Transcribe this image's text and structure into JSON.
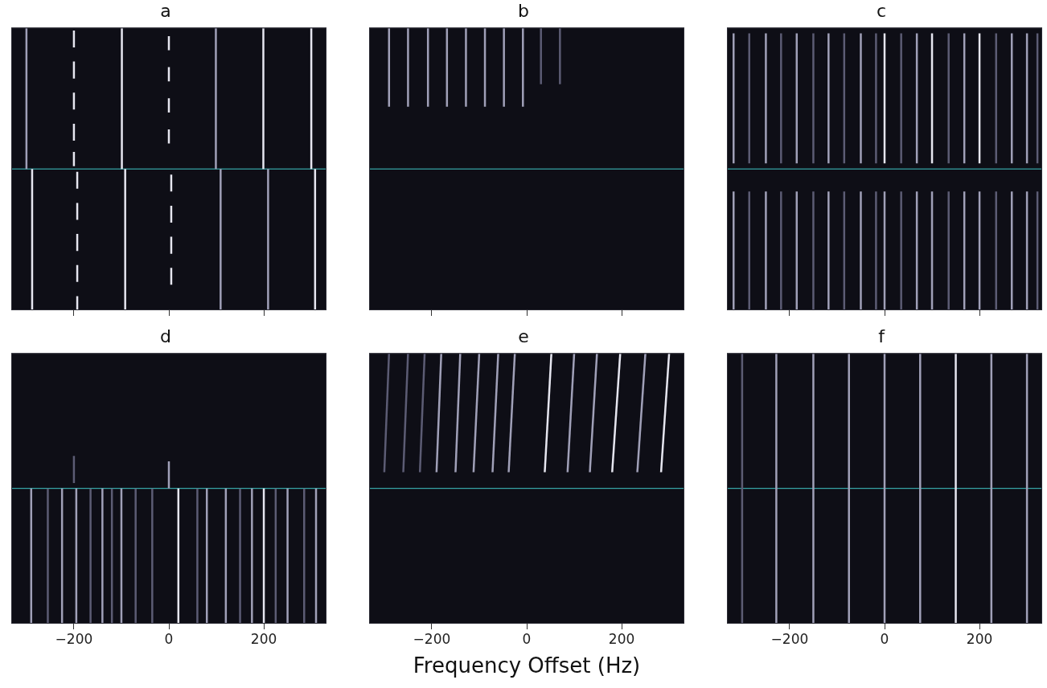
{
  "chart_data": [
    {
      "type": "waterfall",
      "title": "a",
      "xlim": [
        -332,
        332
      ],
      "xticks": [
        {
          "value": -200,
          "label": "−200"
        },
        0,
        200
      ],
      "ylim": [
        0,
        1
      ],
      "yticks": [],
      "grid": false,
      "tick_labels": false,
      "divider": 0.5,
      "lines": [
        {
          "x": -300,
          "y": [
            0.5,
            1
          ],
          "color": "#a0a0b8"
        },
        {
          "x": -99,
          "y": [
            0.5,
            1
          ],
          "color": "#e6e6f0"
        },
        {
          "x": 99,
          "y": [
            0.5,
            1
          ],
          "color": "#a0a0b8"
        },
        {
          "x": 199,
          "y": [
            0.5,
            1
          ],
          "color": "#e6e6f0"
        },
        {
          "x": 300,
          "y": [
            0.5,
            1
          ],
          "color": "#e6e6f0"
        },
        {
          "x": -200,
          "y": [
            0.93,
            0.99
          ],
          "color": "#e6e6f0"
        },
        {
          "x": -200,
          "y": [
            0.82,
            0.88
          ],
          "color": "#e6e6f0"
        },
        {
          "x": -200,
          "y": [
            0.71,
            0.77
          ],
          "color": "#e6e6f0"
        },
        {
          "x": -200,
          "y": [
            0.6,
            0.66
          ],
          "color": "#e6e6f0"
        },
        {
          "x": -200,
          "y": [
            0.51,
            0.56
          ],
          "color": "#e6e6f0"
        },
        {
          "x": 0,
          "y": [
            0.92,
            0.97
          ],
          "color": "#e6e6f0"
        },
        {
          "x": 0,
          "y": [
            0.81,
            0.86
          ],
          "color": "#e6e6f0"
        },
        {
          "x": 0,
          "y": [
            0.7,
            0.75
          ],
          "color": "#e6e6f0"
        },
        {
          "x": 0,
          "y": [
            0.59,
            0.64
          ],
          "color": "#e6e6f0"
        },
        {
          "x": -288,
          "y": [
            0,
            0.5
          ],
          "color": "#e6e6f0"
        },
        {
          "x": -92,
          "y": [
            0,
            0.5
          ],
          "color": "#e6e6f0"
        },
        {
          "x": 109,
          "y": [
            0,
            0.5
          ],
          "color": "#a0a0b8"
        },
        {
          "x": 209,
          "y": [
            0,
            0.5
          ],
          "color": "#a0a0b8"
        },
        {
          "x": 308,
          "y": [
            0,
            0.5
          ],
          "color": "#e6e6f0"
        },
        {
          "x": -193,
          "y": [
            0.43,
            0.49
          ],
          "color": "#e6e6f0"
        },
        {
          "x": -193,
          "y": [
            0.32,
            0.38
          ],
          "color": "#e6e6f0"
        },
        {
          "x": -193,
          "y": [
            0.21,
            0.27
          ],
          "color": "#e6e6f0"
        },
        {
          "x": -193,
          "y": [
            0.1,
            0.16
          ],
          "color": "#e6e6f0"
        },
        {
          "x": -193,
          "y": [
            0,
            0.05
          ],
          "color": "#e6e6f0"
        },
        {
          "x": 5,
          "y": [
            0.42,
            0.48
          ],
          "color": "#e6e6f0"
        },
        {
          "x": 5,
          "y": [
            0.31,
            0.37
          ],
          "color": "#e6e6f0"
        },
        {
          "x": 5,
          "y": [
            0.2,
            0.26
          ],
          "color": "#e6e6f0"
        },
        {
          "x": 5,
          "y": [
            0.09,
            0.15
          ],
          "color": "#e6e6f0"
        }
      ]
    },
    {
      "type": "waterfall",
      "title": "b",
      "xlim": [
        -332,
        332
      ],
      "xticks": [
        {
          "value": -200,
          "label": "−200"
        },
        0,
        200
      ],
      "ylim": [
        0,
        1
      ],
      "yticks": [],
      "grid": false,
      "tick_labels": false,
      "divider": 0.5,
      "lines": [
        {
          "x": -290,
          "y": [
            0.72,
            1
          ],
          "color": "#a0a0b8"
        },
        {
          "x": -250,
          "y": [
            0.72,
            1
          ],
          "color": "#a0a0b8"
        },
        {
          "x": -208,
          "y": [
            0.72,
            1
          ],
          "color": "#a0a0b8"
        },
        {
          "x": -168,
          "y": [
            0.72,
            1
          ],
          "color": "#a0a0b8"
        },
        {
          "x": -128,
          "y": [
            0.72,
            1
          ],
          "color": "#a0a0b8"
        },
        {
          "x": -88,
          "y": [
            0.72,
            1
          ],
          "color": "#a0a0b8"
        },
        {
          "x": -48,
          "y": [
            0.72,
            1
          ],
          "color": "#a0a0b8"
        },
        {
          "x": -8,
          "y": [
            0.72,
            1
          ],
          "color": "#a0a0b8"
        },
        {
          "x": 30,
          "y": [
            0.8,
            1
          ],
          "color": "#5c5c74"
        },
        {
          "x": 70,
          "y": [
            0.8,
            1
          ],
          "color": "#5c5c74"
        }
      ]
    },
    {
      "type": "waterfall",
      "title": "c",
      "xlim": [
        -332,
        332
      ],
      "xticks": [
        {
          "value": -200,
          "label": "−200"
        },
        0,
        200
      ],
      "ylim": [
        0,
        1
      ],
      "yticks": [],
      "grid": false,
      "tick_labels": false,
      "divider": 0.5,
      "lines": [
        {
          "x": -318,
          "y": [
            0.52,
            0.98
          ],
          "color": "#a0a0b8"
        },
        {
          "x": -318,
          "y": [
            0,
            0.42
          ],
          "color": "#a0a0b8"
        },
        {
          "x": -285,
          "y": [
            0.52,
            0.98
          ],
          "color": "#5c5c74"
        },
        {
          "x": -285,
          "y": [
            0,
            0.42
          ],
          "color": "#5c5c74"
        },
        {
          "x": -250,
          "y": [
            0.52,
            0.98
          ],
          "color": "#a0a0b8"
        },
        {
          "x": -250,
          "y": [
            0,
            0.42
          ],
          "color": "#a0a0b8"
        },
        {
          "x": -218,
          "y": [
            0.52,
            0.98
          ],
          "color": "#5c5c74"
        },
        {
          "x": -218,
          "y": [
            0,
            0.42
          ],
          "color": "#5c5c74"
        },
        {
          "x": -185,
          "y": [
            0.52,
            0.98
          ],
          "color": "#a0a0b8"
        },
        {
          "x": -185,
          "y": [
            0,
            0.42
          ],
          "color": "#a0a0b8"
        },
        {
          "x": -150,
          "y": [
            0.52,
            0.98
          ],
          "color": "#5c5c74"
        },
        {
          "x": -150,
          "y": [
            0,
            0.42
          ],
          "color": "#5c5c74"
        },
        {
          "x": -118,
          "y": [
            0.52,
            0.98
          ],
          "color": "#a0a0b8"
        },
        {
          "x": -118,
          "y": [
            0,
            0.42
          ],
          "color": "#a0a0b8"
        },
        {
          "x": -85,
          "y": [
            0.52,
            0.98
          ],
          "color": "#5c5c74"
        },
        {
          "x": -85,
          "y": [
            0,
            0.42
          ],
          "color": "#5c5c74"
        },
        {
          "x": -50,
          "y": [
            0.52,
            0.98
          ],
          "color": "#a0a0b8"
        },
        {
          "x": -50,
          "y": [
            0,
            0.42
          ],
          "color": "#a0a0b8"
        },
        {
          "x": -18,
          "y": [
            0.52,
            0.98
          ],
          "color": "#5c5c74"
        },
        {
          "x": -18,
          "y": [
            0,
            0.42
          ],
          "color": "#5c5c74"
        },
        {
          "x": 0,
          "y": [
            0.52,
            0.98
          ],
          "color": "#e6e6f0"
        },
        {
          "x": 0,
          "y": [
            0,
            0.42
          ],
          "color": "#a0a0b8"
        },
        {
          "x": 35,
          "y": [
            0.52,
            0.98
          ],
          "color": "#5c5c74"
        },
        {
          "x": 35,
          "y": [
            0,
            0.42
          ],
          "color": "#5c5c74"
        },
        {
          "x": 68,
          "y": [
            0.52,
            0.98
          ],
          "color": "#a0a0b8"
        },
        {
          "x": 68,
          "y": [
            0,
            0.42
          ],
          "color": "#a0a0b8"
        },
        {
          "x": 100,
          "y": [
            0.52,
            0.98
          ],
          "color": "#e6e6f0"
        },
        {
          "x": 100,
          "y": [
            0,
            0.42
          ],
          "color": "#a0a0b8"
        },
        {
          "x": 135,
          "y": [
            0.52,
            0.98
          ],
          "color": "#5c5c74"
        },
        {
          "x": 135,
          "y": [
            0,
            0.42
          ],
          "color": "#5c5c74"
        },
        {
          "x": 168,
          "y": [
            0.52,
            0.98
          ],
          "color": "#a0a0b8"
        },
        {
          "x": 168,
          "y": [
            0,
            0.42
          ],
          "color": "#a0a0b8"
        },
        {
          "x": 200,
          "y": [
            0.52,
            0.98
          ],
          "color": "#e6e6f0"
        },
        {
          "x": 200,
          "y": [
            0,
            0.42
          ],
          "color": "#a0a0b8"
        },
        {
          "x": 235,
          "y": [
            0.52,
            0.98
          ],
          "color": "#5c5c74"
        },
        {
          "x": 235,
          "y": [
            0,
            0.42
          ],
          "color": "#5c5c74"
        },
        {
          "x": 268,
          "y": [
            0.52,
            0.98
          ],
          "color": "#a0a0b8"
        },
        {
          "x": 268,
          "y": [
            0,
            0.42
          ],
          "color": "#a0a0b8"
        },
        {
          "x": 300,
          "y": [
            0.52,
            0.98
          ],
          "color": "#a0a0b8"
        },
        {
          "x": 300,
          "y": [
            0,
            0.42
          ],
          "color": "#a0a0b8"
        },
        {
          "x": 322,
          "y": [
            0.52,
            0.98
          ],
          "color": "#5c5c74"
        },
        {
          "x": 322,
          "y": [
            0,
            0.42
          ],
          "color": "#5c5c74"
        }
      ]
    },
    {
      "type": "waterfall",
      "title": "d",
      "xlim": [
        -332,
        332
      ],
      "xticks": [
        {
          "value": -200,
          "label": "−200"
        },
        0,
        200
      ],
      "ylim": [
        0,
        1
      ],
      "yticks": [],
      "grid": false,
      "tick_labels": "x",
      "divider": 0.5,
      "lines": [
        {
          "x": -200,
          "y": [
            0.52,
            0.62
          ],
          "color": "#5c5c74"
        },
        {
          "x": 0,
          "y": [
            0.5,
            0.6
          ],
          "color": "#a0a0b8"
        },
        {
          "x": -290,
          "y": [
            0,
            0.5
          ],
          "color": "#a0a0b8"
        },
        {
          "x": -255,
          "y": [
            0,
            0.5
          ],
          "color": "#5c5c74"
        },
        {
          "x": -225,
          "y": [
            0,
            0.5
          ],
          "color": "#a0a0b8"
        },
        {
          "x": -195,
          "y": [
            0,
            0.5
          ],
          "color": "#a0a0b8"
        },
        {
          "x": -165,
          "y": [
            0,
            0.5
          ],
          "color": "#5c5c74"
        },
        {
          "x": -140,
          "y": [
            0,
            0.5
          ],
          "color": "#a0a0b8"
        },
        {
          "x": -120,
          "y": [
            0,
            0.5
          ],
          "color": "#5c5c74"
        },
        {
          "x": -100,
          "y": [
            0,
            0.5
          ],
          "color": "#a0a0b8"
        },
        {
          "x": -70,
          "y": [
            0,
            0.5
          ],
          "color": "#5c5c74"
        },
        {
          "x": -35,
          "y": [
            0,
            0.5
          ],
          "color": "#5c5c74"
        },
        {
          "x": 20,
          "y": [
            0,
            0.5
          ],
          "color": "#e6e6f0"
        },
        {
          "x": 60,
          "y": [
            0,
            0.5
          ],
          "color": "#5c5c74"
        },
        {
          "x": 80,
          "y": [
            0,
            0.5
          ],
          "color": "#a0a0b8"
        },
        {
          "x": 120,
          "y": [
            0,
            0.5
          ],
          "color": "#a0a0b8"
        },
        {
          "x": 150,
          "y": [
            0,
            0.5
          ],
          "color": "#5c5c74"
        },
        {
          "x": 175,
          "y": [
            0,
            0.5
          ],
          "color": "#a0a0b8"
        },
        {
          "x": 200,
          "y": [
            0,
            0.5
          ],
          "color": "#e6e6f0"
        },
        {
          "x": 225,
          "y": [
            0,
            0.5
          ],
          "color": "#5c5c74"
        },
        {
          "x": 250,
          "y": [
            0,
            0.5
          ],
          "color": "#a0a0b8"
        },
        {
          "x": 285,
          "y": [
            0,
            0.5
          ],
          "color": "#5c5c74"
        },
        {
          "x": 310,
          "y": [
            0,
            0.5
          ],
          "color": "#a0a0b8"
        }
      ]
    },
    {
      "type": "waterfall",
      "title": "e",
      "x_label": "Frequency Offset (Hz)",
      "xlim": [
        -332,
        332
      ],
      "xticks": [
        {
          "value": -200,
          "label": "−200"
        },
        0,
        200
      ],
      "ylim": [
        0,
        1
      ],
      "yticks": [],
      "grid": false,
      "tick_labels": "x",
      "divider": 0.5,
      "lines": [
        {
          "x": [
            -290,
            -300
          ],
          "y": [
            1,
            0.56
          ],
          "color": "#5c5c74"
        },
        {
          "x": [
            -250,
            -260
          ],
          "y": [
            1,
            0.56
          ],
          "color": "#5c5c74"
        },
        {
          "x": [
            -215,
            -225
          ],
          "y": [
            1,
            0.56
          ],
          "color": "#5c5c74"
        },
        {
          "x": [
            -180,
            -190
          ],
          "y": [
            1,
            0.56
          ],
          "color": "#a0a0b8"
        },
        {
          "x": [
            -140,
            -150
          ],
          "y": [
            1,
            0.56
          ],
          "color": "#a0a0b8"
        },
        {
          "x": [
            -100,
            -112
          ],
          "y": [
            1,
            0.56
          ],
          "color": "#a0a0b8"
        },
        {
          "x": [
            -60,
            -72
          ],
          "y": [
            1,
            0.56
          ],
          "color": "#a0a0b8"
        },
        {
          "x": [
            -25,
            -38
          ],
          "y": [
            1,
            0.56
          ],
          "color": "#a0a0b8"
        },
        {
          "x": [
            52,
            38
          ],
          "y": [
            1,
            0.56
          ],
          "color": "#e6e6f0"
        },
        {
          "x": [
            100,
            86
          ],
          "y": [
            1,
            0.56
          ],
          "color": "#a0a0b8"
        },
        {
          "x": [
            148,
            133
          ],
          "y": [
            1,
            0.56
          ],
          "color": "#a0a0b8"
        },
        {
          "x": [
            197,
            180
          ],
          "y": [
            1,
            0.56
          ],
          "color": "#e6e6f0"
        },
        {
          "x": [
            250,
            233
          ],
          "y": [
            1,
            0.56
          ],
          "color": "#a0a0b8"
        },
        {
          "x": [
            300,
            283
          ],
          "y": [
            1,
            0.56
          ],
          "color": "#e6e6f0"
        }
      ]
    },
    {
      "type": "waterfall",
      "title": "f",
      "xlim": [
        -332,
        332
      ],
      "xticks": [
        {
          "value": -200,
          "label": "−200"
        },
        0,
        200
      ],
      "ylim": [
        0,
        1
      ],
      "yticks": [],
      "grid": false,
      "tick_labels": "x",
      "divider": 0.5,
      "lines": [
        {
          "x": -300,
          "y": [
            0,
            1
          ],
          "color": "#5c5c74"
        },
        {
          "x": -228,
          "y": [
            0,
            1
          ],
          "color": "#a0a0b8"
        },
        {
          "x": -150,
          "y": [
            0,
            1
          ],
          "color": "#a0a0b8"
        },
        {
          "x": -75,
          "y": [
            0,
            1
          ],
          "color": "#a0a0b8"
        },
        {
          "x": 0,
          "y": [
            0,
            1
          ],
          "color": "#a0a0b8"
        },
        {
          "x": 75,
          "y": [
            0,
            1
          ],
          "color": "#a0a0b8"
        },
        {
          "x": 150,
          "y": [
            0,
            1
          ],
          "color": "#e6e6f0"
        },
        {
          "x": 225,
          "y": [
            0,
            1
          ],
          "color": "#a0a0b8"
        },
        {
          "x": 300,
          "y": [
            0,
            1
          ],
          "color": "#a0a0b8"
        }
      ]
    }
  ]
}
